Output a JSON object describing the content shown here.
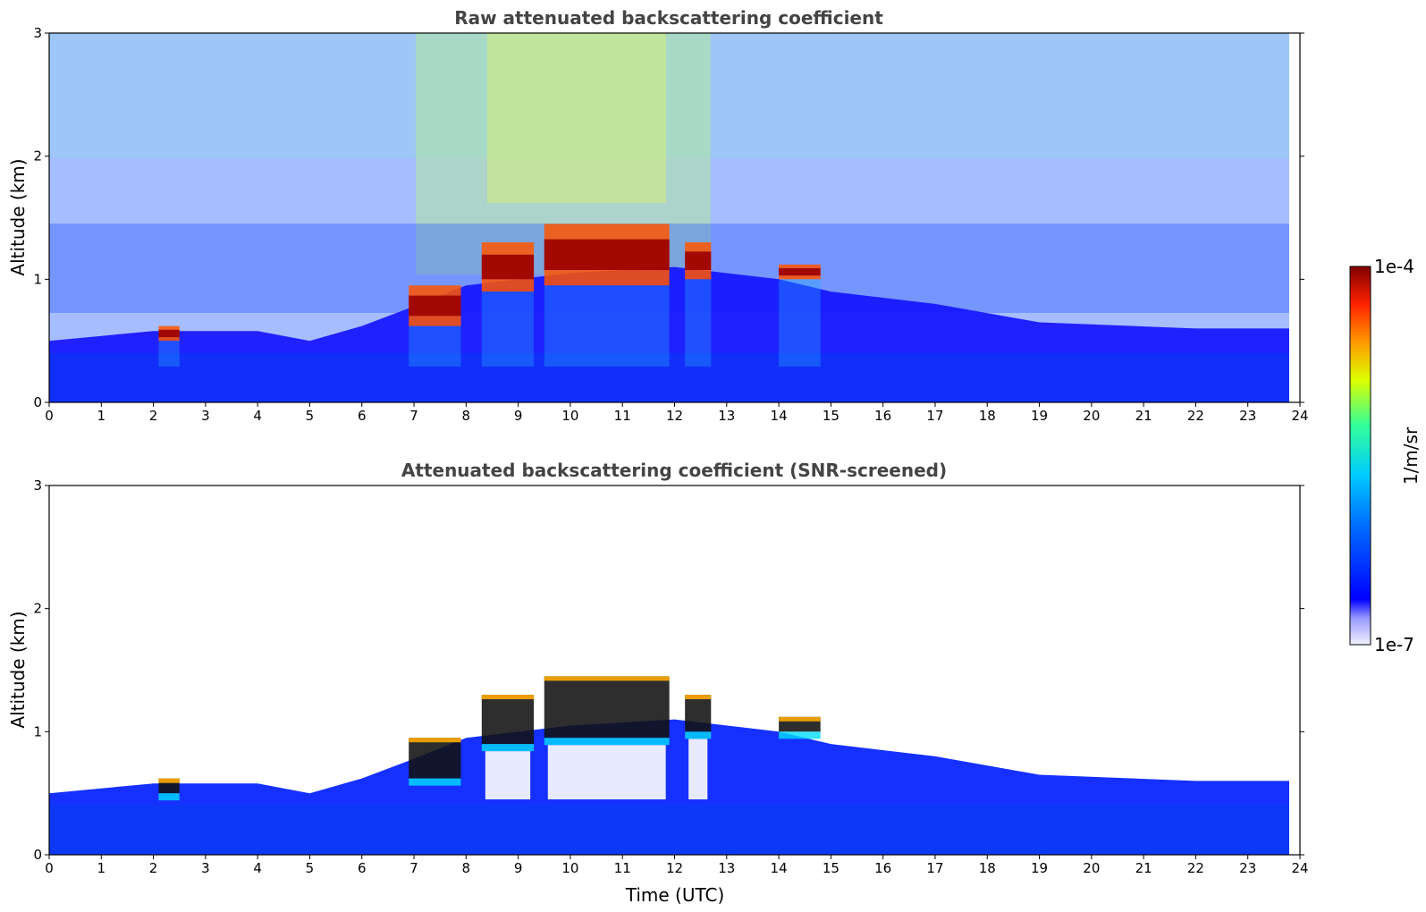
{
  "chart_data": [
    {
      "type": "heatmap",
      "title": "Raw attenuated backscattering coefficient",
      "xlabel": "",
      "ylabel": "Altitude (km)",
      "xlim": [
        0,
        24
      ],
      "ylim": [
        0,
        3
      ],
      "x_ticks": [
        "0",
        "1",
        "2",
        "3",
        "4",
        "5",
        "6",
        "7",
        "8",
        "9",
        "10",
        "11",
        "12",
        "13",
        "14",
        "15",
        "16",
        "17",
        "18",
        "19",
        "20",
        "21",
        "22",
        "23",
        "24"
      ],
      "y_ticks": [
        "0",
        "1",
        "2",
        "3"
      ],
      "grid": false,
      "boundary_layer_top_km": [
        [
          0,
          0.5
        ],
        [
          2,
          0.58
        ],
        [
          4,
          0.58
        ],
        [
          5,
          0.5
        ],
        [
          6,
          0.62
        ],
        [
          7,
          0.78
        ],
        [
          8,
          0.95
        ],
        [
          10,
          1.05
        ],
        [
          12,
          1.1
        ],
        [
          14,
          1.0
        ],
        [
          15,
          0.9
        ],
        [
          17,
          0.8
        ],
        [
          19,
          0.65
        ],
        [
          22,
          0.6
        ],
        [
          23.8,
          0.6
        ]
      ],
      "cloud_features": [
        {
          "t_start": 2.1,
          "t_end": 2.5,
          "base_km": 0.5,
          "top_km": 0.62
        },
        {
          "t_start": 6.9,
          "t_end": 7.9,
          "base_km": 0.62,
          "top_km": 0.95
        },
        {
          "t_start": 8.3,
          "t_end": 9.3,
          "base_km": 0.9,
          "top_km": 1.3
        },
        {
          "t_start": 9.5,
          "t_end": 11.9,
          "base_km": 0.95,
          "top_km": 1.45
        },
        {
          "t_start": 12.2,
          "t_end": 12.7,
          "base_km": 1.0,
          "top_km": 1.3
        },
        {
          "t_start": 14.0,
          "t_end": 14.8,
          "base_km": 1.0,
          "top_km": 1.12
        }
      ]
    },
    {
      "type": "heatmap",
      "title": "Attenuated backscattering coefficient (SNR-screened)",
      "xlabel": "Time (UTC)",
      "ylabel": "Altitude (km)",
      "xlim": [
        0,
        24
      ],
      "ylim": [
        0,
        3
      ],
      "x_ticks": [
        "0",
        "1",
        "2",
        "3",
        "4",
        "5",
        "6",
        "7",
        "8",
        "9",
        "10",
        "11",
        "12",
        "13",
        "14",
        "15",
        "16",
        "17",
        "18",
        "19",
        "20",
        "21",
        "22",
        "23",
        "24"
      ],
      "y_ticks": [
        "0",
        "1",
        "2",
        "3"
      ],
      "grid": false
    }
  ],
  "colorbar": {
    "max_label": "1e-4",
    "min_label": "1e-7",
    "units": "1/m/sr",
    "colormap": "jet",
    "colors": [
      "#eeeeff",
      "#9999ff",
      "#0000ff",
      "#00ccff",
      "#00ff99",
      "#ffff00",
      "#ff6600",
      "#cc0000",
      "#800000"
    ]
  }
}
